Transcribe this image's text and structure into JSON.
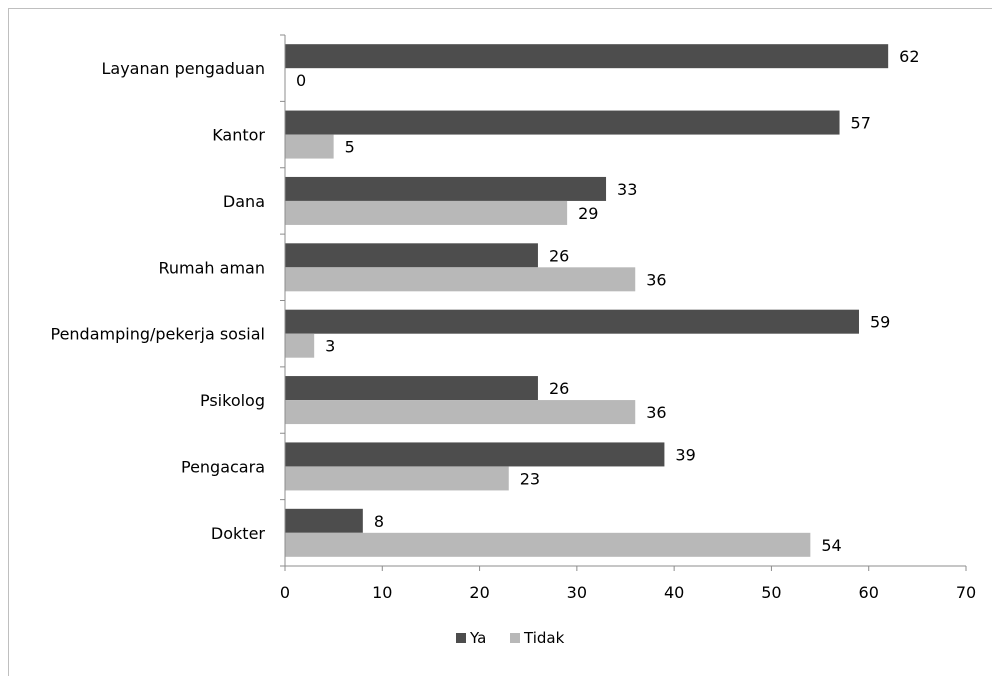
{
  "chart_data": {
    "type": "bar",
    "orientation": "horizontal",
    "categories": [
      "Layanan pengaduan",
      "Kantor",
      "Dana",
      "Rumah aman",
      "Pendamping/pekerja sosial",
      "Psikolog",
      "Pengacara",
      "Dokter"
    ],
    "series": [
      {
        "name": "Ya",
        "color": "#4d4d4d",
        "values": [
          62,
          57,
          33,
          26,
          59,
          26,
          39,
          8
        ]
      },
      {
        "name": "Tidak",
        "color": "#b8b8b8",
        "values": [
          0,
          5,
          29,
          36,
          3,
          36,
          23,
          54
        ]
      }
    ],
    "xlim": [
      0,
      70
    ],
    "xticks": [
      "0",
      "10",
      "20",
      "30",
      "40",
      "50",
      "60",
      "70"
    ],
    "grid": false,
    "data_labels": true,
    "legend_position": "bottom"
  }
}
